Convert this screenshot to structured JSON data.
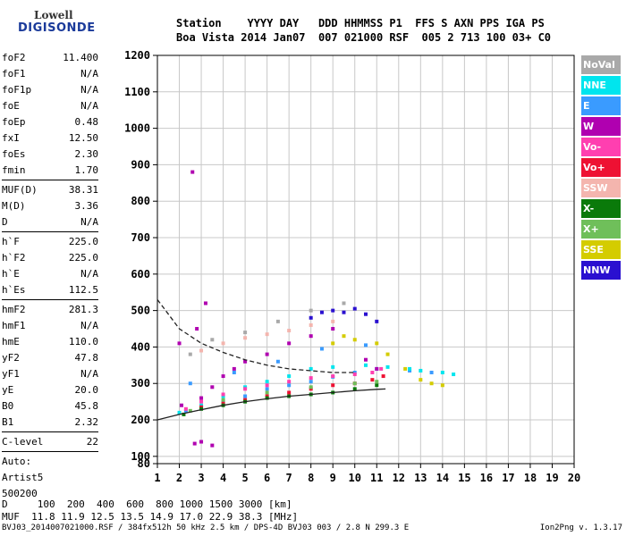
{
  "logo": {
    "line1": "Lowell",
    "line2": "DIGISONDE"
  },
  "header": {
    "line1": "Station    YYYY DAY   DDD HHMMSS P1  FFS S AXN PPS IGA PS",
    "line2": "Boa Vista 2014 Jan07  007 021000 RSF  005 2 713 100 03+ C0"
  },
  "params": [
    [
      {
        "k": "foF2",
        "v": "11.400"
      },
      {
        "k": "foF1",
        "v": "N/A"
      },
      {
        "k": "foF1p",
        "v": "N/A"
      },
      {
        "k": "foE",
        "v": "N/A"
      },
      {
        "k": "foEp",
        "v": "0.48"
      },
      {
        "k": "fxI",
        "v": "12.50"
      },
      {
        "k": "foEs",
        "v": "2.30"
      },
      {
        "k": "fmin",
        "v": "1.70"
      }
    ],
    [
      {
        "k": "MUF(D)",
        "v": "38.31"
      },
      {
        "k": "M(D)",
        "v": "3.36"
      },
      {
        "k": "D",
        "v": "N/A"
      }
    ],
    [
      {
        "k": "h`F",
        "v": "225.0"
      },
      {
        "k": "h`F2",
        "v": "225.0"
      },
      {
        "k": "h`E",
        "v": "N/A"
      },
      {
        "k": "h`Es",
        "v": "112.5"
      }
    ],
    [
      {
        "k": "hmF2",
        "v": "281.3"
      },
      {
        "k": "hmF1",
        "v": "N/A"
      },
      {
        "k": "hmE",
        "v": "110.0"
      },
      {
        "k": "yF2",
        "v": "47.8"
      },
      {
        "k": "yF1",
        "v": "N/A"
      },
      {
        "k": "yE",
        "v": "20.0"
      },
      {
        "k": "B0",
        "v": "45.8"
      },
      {
        "k": "B1",
        "v": "2.32"
      }
    ],
    [
      {
        "k": "C-level",
        "v": "22"
      }
    ]
  ],
  "auto": {
    "l1": "Auto:",
    "l2": "Artist5",
    "l3": "500200"
  },
  "legend": [
    {
      "label": "NoVal",
      "color": "#a9a9a9"
    },
    {
      "label": "NNE",
      "color": "#00e5ee"
    },
    {
      "label": "E",
      "color": "#3a9bff"
    },
    {
      "label": "W",
      "color": "#b000b0"
    },
    {
      "label": "Vo-",
      "color": "#ff3fb0"
    },
    {
      "label": "Vo+",
      "color": "#ee1133"
    },
    {
      "label": "SSW",
      "color": "#f4b5ae"
    },
    {
      "label": "X-",
      "color": "#0a7a0a"
    },
    {
      "label": "X+",
      "color": "#6fbf5a"
    },
    {
      "label": "SSE",
      "color": "#d4cc00"
    },
    {
      "label": "NNW",
      "color": "#2a10d0"
    }
  ],
  "chart_data": {
    "type": "scatter",
    "xlim": [
      1,
      20
    ],
    "ylim": [
      80,
      1200
    ],
    "x_ticks": [
      "1",
      "2",
      "3",
      "4",
      "5",
      "6",
      "7",
      "8",
      "9",
      "10",
      "11",
      "12",
      "13",
      "14",
      "15",
      "16",
      "17",
      "18",
      "19",
      "20"
    ],
    "y_ticks": [
      "80",
      "100",
      "200",
      "300",
      "400",
      "500",
      "600",
      "700",
      "800",
      "900",
      "1000",
      "1100",
      "1200"
    ],
    "grid": true,
    "series": [
      {
        "name": "E",
        "color": "#3a9bff",
        "points": [
          [
            2.3,
            225
          ],
          [
            3,
            235
          ],
          [
            4,
            250
          ],
          [
            5,
            265
          ],
          [
            6,
            285
          ],
          [
            7,
            295
          ],
          [
            8,
            305
          ],
          [
            9,
            318
          ],
          [
            10,
            330
          ],
          [
            11,
            340
          ],
          [
            12.5,
            335
          ],
          [
            13.5,
            330
          ],
          [
            2.5,
            300
          ],
          [
            4.5,
            330
          ],
          [
            6.5,
            360
          ],
          [
            8.5,
            395
          ],
          [
            10.5,
            405
          ]
        ]
      },
      {
        "name": "NNE",
        "color": "#00e5ee",
        "points": [
          [
            2,
            220
          ],
          [
            3,
            240
          ],
          [
            4,
            265
          ],
          [
            5,
            290
          ],
          [
            6,
            305
          ],
          [
            7,
            320
          ],
          [
            8,
            340
          ],
          [
            9,
            345
          ],
          [
            10.5,
            350
          ],
          [
            11.5,
            345
          ],
          [
            12.5,
            340
          ],
          [
            13,
            335
          ],
          [
            14,
            330
          ],
          [
            14.5,
            325
          ]
        ]
      },
      {
        "name": "W",
        "color": "#b000b0",
        "points": [
          [
            2.1,
            240
          ],
          [
            3,
            260
          ],
          [
            3.5,
            290
          ],
          [
            4,
            320
          ],
          [
            4.5,
            340
          ],
          [
            5,
            360
          ],
          [
            6,
            380
          ],
          [
            7,
            410
          ],
          [
            8,
            430
          ],
          [
            9,
            450
          ],
          [
            10.5,
            365
          ],
          [
            11,
            340
          ],
          [
            2.7,
            135
          ],
          [
            3,
            140
          ],
          [
            3.5,
            130
          ],
          [
            2,
            410
          ],
          [
            2.8,
            450
          ],
          [
            3.2,
            520
          ],
          [
            2.6,
            880
          ]
        ]
      },
      {
        "name": "Vo-",
        "color": "#ff3fb0",
        "points": [
          [
            2.3,
            230
          ],
          [
            3,
            250
          ],
          [
            4,
            270
          ],
          [
            5,
            285
          ],
          [
            6,
            295
          ],
          [
            7,
            305
          ],
          [
            8,
            315
          ],
          [
            9,
            320
          ],
          [
            10,
            325
          ],
          [
            10.8,
            330
          ],
          [
            11.2,
            340
          ]
        ]
      },
      {
        "name": "Vo+",
        "color": "#ee1133",
        "points": [
          [
            3,
            235
          ],
          [
            4,
            245
          ],
          [
            5,
            255
          ],
          [
            6,
            265
          ],
          [
            7,
            275
          ],
          [
            8,
            285
          ],
          [
            9,
            295
          ],
          [
            10,
            300
          ],
          [
            10.8,
            310
          ],
          [
            11.3,
            320
          ]
        ]
      },
      {
        "name": "SSW",
        "color": "#f4b5ae",
        "points": [
          [
            3,
            390
          ],
          [
            4,
            410
          ],
          [
            5,
            425
          ],
          [
            6,
            435
          ],
          [
            7,
            445
          ],
          [
            8,
            460
          ],
          [
            9,
            470
          ]
        ]
      },
      {
        "name": "X-",
        "color": "#0a7a0a",
        "points": [
          [
            2.2,
            215
          ],
          [
            3,
            230
          ],
          [
            4,
            240
          ],
          [
            5,
            250
          ],
          [
            6,
            260
          ],
          [
            7,
            265
          ],
          [
            8,
            270
          ],
          [
            9,
            275
          ],
          [
            10,
            285
          ],
          [
            11,
            295
          ]
        ]
      },
      {
        "name": "X+",
        "color": "#6fbf5a",
        "points": [
          [
            2.5,
            225
          ],
          [
            4,
            255
          ],
          [
            6,
            275
          ],
          [
            8,
            290
          ],
          [
            10,
            300
          ],
          [
            11,
            305
          ]
        ]
      },
      {
        "name": "SSE",
        "color": "#d4cc00",
        "points": [
          [
            9,
            410
          ],
          [
            9.5,
            430
          ],
          [
            10,
            420
          ],
          [
            11,
            410
          ],
          [
            11.5,
            380
          ],
          [
            12.3,
            340
          ],
          [
            13,
            310
          ],
          [
            13.5,
            300
          ],
          [
            14,
            295
          ]
        ]
      },
      {
        "name": "NNW",
        "color": "#2a10d0",
        "points": [
          [
            8,
            480
          ],
          [
            8.5,
            495
          ],
          [
            9,
            500
          ],
          [
            9.5,
            495
          ],
          [
            10,
            505
          ],
          [
            10.5,
            490
          ],
          [
            11,
            470
          ]
        ]
      },
      {
        "name": "NoVal",
        "color": "#a9a9a9",
        "points": [
          [
            2.5,
            380
          ],
          [
            3.5,
            420
          ],
          [
            5,
            440
          ],
          [
            6.5,
            470
          ],
          [
            8,
            500
          ],
          [
            9.5,
            520
          ]
        ]
      }
    ],
    "curves": [
      {
        "style": "solid",
        "points": [
          [
            1,
            200
          ],
          [
            2,
            215
          ],
          [
            3,
            228
          ],
          [
            4,
            240
          ],
          [
            5,
            250
          ],
          [
            6,
            258
          ],
          [
            7,
            265
          ],
          [
            8,
            270
          ],
          [
            9,
            275
          ],
          [
            10,
            280
          ],
          [
            11,
            284
          ],
          [
            11.4,
            285
          ]
        ]
      },
      {
        "style": "dashed",
        "points": [
          [
            1,
            530
          ],
          [
            1.5,
            490
          ],
          [
            2,
            450
          ],
          [
            3,
            410
          ],
          [
            4,
            385
          ],
          [
            5,
            365
          ],
          [
            6,
            350
          ],
          [
            7,
            340
          ],
          [
            8,
            335
          ],
          [
            9,
            330
          ],
          [
            10,
            330
          ]
        ]
      }
    ]
  },
  "footer": {
    "line1": "D     100  200  400  600  800 1000 1500 3000 [km]",
    "line2": "MUF  11.8 11.9 12.5 13.5 14.9 17.0 22.9 38.3 [MHz]",
    "line3": "BVJ03_2014007021000.RSF / 384fx512h 50 kHz 2.5 km / DPS-4D BVJ03 003 / 2.8 N 299.3 E",
    "version": "Ion2Png v. 1.3.17"
  }
}
